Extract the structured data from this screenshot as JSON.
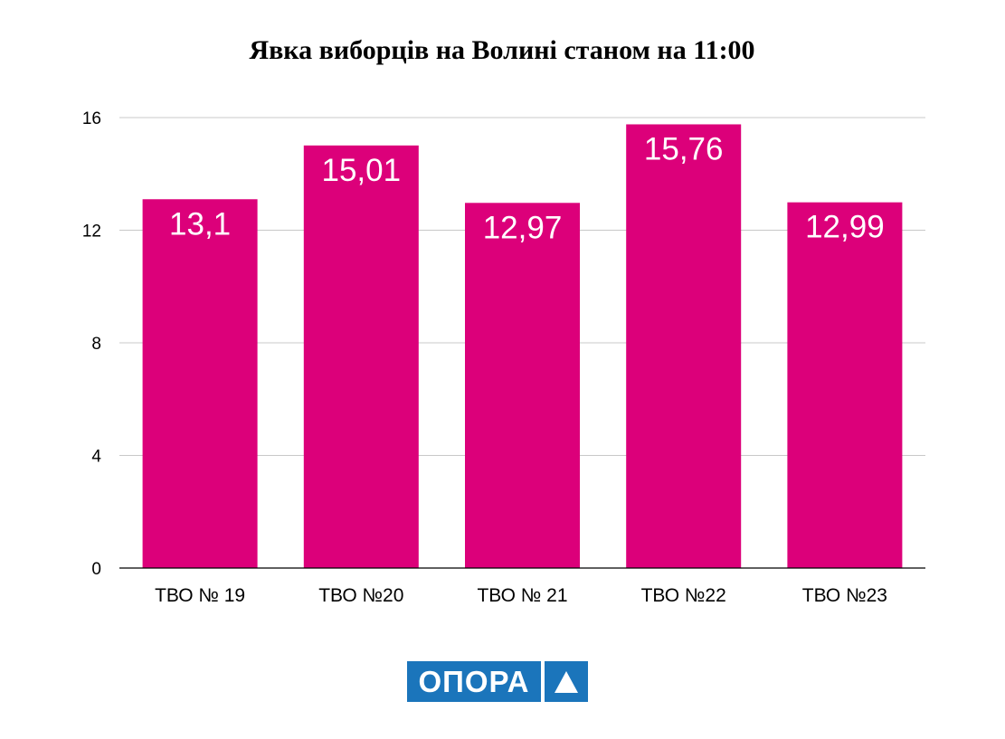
{
  "chart_data": {
    "type": "bar",
    "title": "Явка виборців на Волині станом на 11:00",
    "categories": [
      "ТВО № 19",
      "ТВО №20",
      "ТВО № 21",
      "ТВО №22",
      "ТВО №23"
    ],
    "values": [
      13.1,
      15.01,
      12.97,
      15.76,
      12.99
    ],
    "value_labels": [
      "13,1",
      "15,01",
      "12,97",
      "15,76",
      "12,99"
    ],
    "ylim": [
      0,
      16
    ],
    "yticks": [
      0,
      4,
      8,
      12,
      16
    ],
    "grid": true,
    "bar_color": "#dc007a",
    "xlabel": "",
    "ylabel": ""
  },
  "logo": {
    "text": "ОПОРА",
    "color": "#1b75bb"
  }
}
